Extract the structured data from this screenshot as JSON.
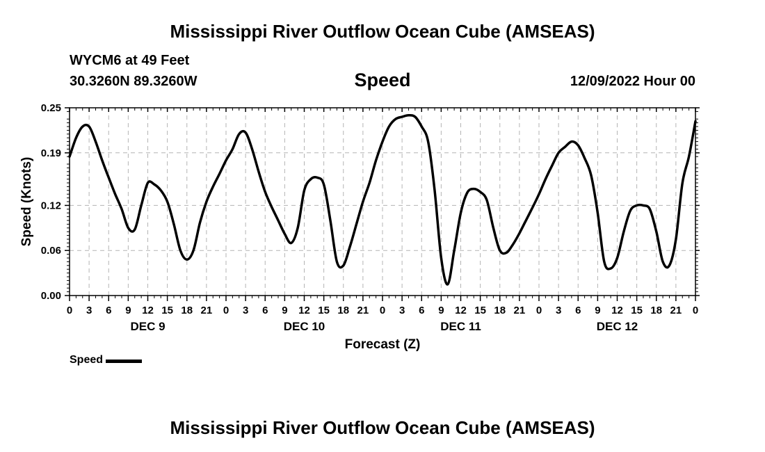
{
  "page": {
    "title": "Mississippi River Outflow Ocean Cube (AMSEAS)",
    "title_bottom": "Mississippi River Outflow Ocean Cube (AMSEAS)",
    "station": "WYCM6 at 49 Feet",
    "coords": "30.3260N  89.3260W",
    "chart_title": "Speed",
    "datetime": "12/09/2022 Hour 00"
  },
  "legend": {
    "label": "Speed"
  },
  "chart_data": {
    "type": "line",
    "title": "Speed",
    "xlabel": "Forecast (Z)",
    "ylabel": "Speed (Knots)",
    "ylim": [
      0,
      0.25
    ],
    "xlim": [
      0,
      96
    ],
    "yticks": [
      0,
      0.06,
      0.12,
      0.19,
      0.25
    ],
    "ytick_labels": [
      "0.00",
      "0.06",
      "0.12",
      "0.19",
      "0.25"
    ],
    "xtick_step_hours": 3,
    "xtick_labels": [
      "0",
      "3",
      "6",
      "9",
      "12",
      "15",
      "18",
      "21",
      "0",
      "3",
      "6",
      "9",
      "12",
      "15",
      "18",
      "21",
      "0",
      "3",
      "6",
      "9",
      "12",
      "15",
      "18",
      "21",
      "0",
      "3",
      "6",
      "9",
      "12",
      "15",
      "18",
      "21",
      "0"
    ],
    "day_labels": [
      "DEC 9",
      "DEC 10",
      "DEC 11",
      "DEC 12"
    ],
    "day_label_hours": [
      12,
      36,
      60,
      84
    ],
    "grid": true,
    "color": "#000000",
    "series": [
      {
        "name": "Speed",
        "x": [
          0,
          1,
          2,
          3,
          4,
          5,
          6,
          7,
          8,
          9,
          10,
          11,
          12,
          13,
          14,
          15,
          16,
          17,
          18,
          19,
          20,
          21,
          22,
          23,
          24,
          25,
          26,
          27,
          28,
          29,
          30,
          31,
          32,
          33,
          34,
          35,
          36,
          37,
          38,
          39,
          40,
          41,
          42,
          43,
          44,
          45,
          46,
          47,
          48,
          49,
          50,
          51,
          52,
          53,
          54,
          55,
          56,
          57,
          58,
          59,
          60,
          61,
          62,
          63,
          64,
          65,
          66,
          67,
          68,
          69,
          70,
          71,
          72,
          73,
          74,
          75,
          76,
          77,
          78,
          79,
          80,
          81,
          82,
          83,
          84,
          85,
          86,
          87,
          88,
          89,
          90,
          91,
          92,
          93,
          94,
          95,
          96
        ],
        "values": [
          0.185,
          0.21,
          0.225,
          0.225,
          0.205,
          0.18,
          0.157,
          0.135,
          0.115,
          0.09,
          0.088,
          0.12,
          0.15,
          0.148,
          0.14,
          0.125,
          0.095,
          0.06,
          0.048,
          0.06,
          0.097,
          0.125,
          0.145,
          0.162,
          0.18,
          0.195,
          0.215,
          0.217,
          0.195,
          0.165,
          0.138,
          0.118,
          0.1,
          0.082,
          0.07,
          0.09,
          0.14,
          0.155,
          0.157,
          0.148,
          0.1,
          0.045,
          0.04,
          0.065,
          0.095,
          0.125,
          0.15,
          0.18,
          0.205,
          0.225,
          0.235,
          0.238,
          0.24,
          0.238,
          0.225,
          0.205,
          0.14,
          0.05,
          0.015,
          0.06,
          0.11,
          0.137,
          0.142,
          0.138,
          0.127,
          0.09,
          0.06,
          0.057,
          0.068,
          0.083,
          0.1,
          0.117,
          0.135,
          0.155,
          0.173,
          0.19,
          0.198,
          0.205,
          0.2,
          0.183,
          0.16,
          0.11,
          0.045,
          0.036,
          0.05,
          0.085,
          0.113,
          0.12,
          0.12,
          0.115,
          0.085,
          0.045,
          0.04,
          0.075,
          0.15,
          0.185,
          0.232
        ]
      }
    ]
  }
}
